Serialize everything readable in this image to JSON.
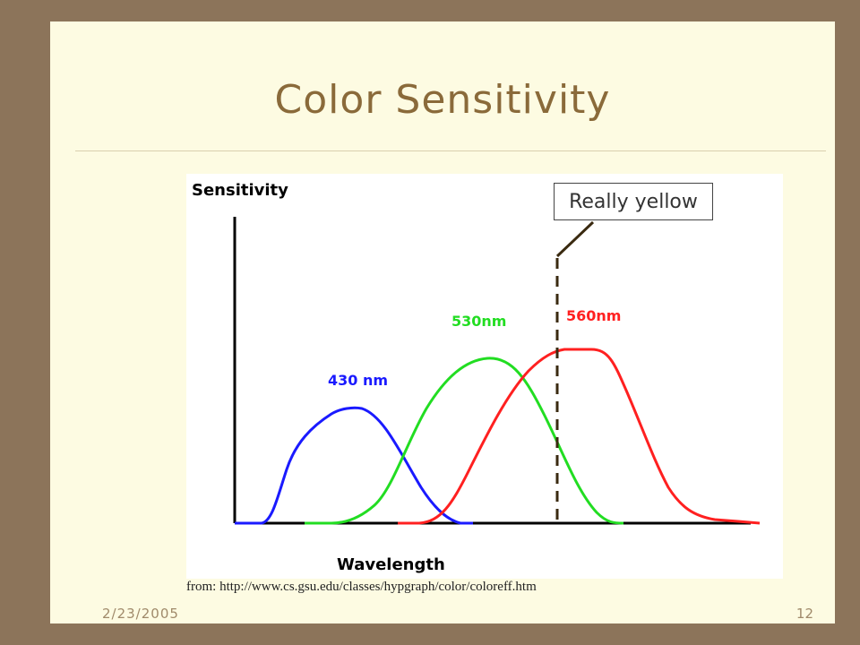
{
  "slide": {
    "title": "Color Sensitivity",
    "callout": "Really yellow",
    "source": "from: http://www.cs.gsu.edu/classes/hypgraph/color/coloreff.htm",
    "date": "2/23/2005",
    "page": "12"
  },
  "figure": {
    "y_label": "Sensitivity",
    "x_label": "Wavelength",
    "curves": [
      {
        "label": "430 nm",
        "color": "#1a1aff"
      },
      {
        "label": "530nm",
        "color": "#22dd22"
      },
      {
        "label": "560nm",
        "color": "#ff2020"
      }
    ],
    "marker_color": "#3a2a10"
  }
}
